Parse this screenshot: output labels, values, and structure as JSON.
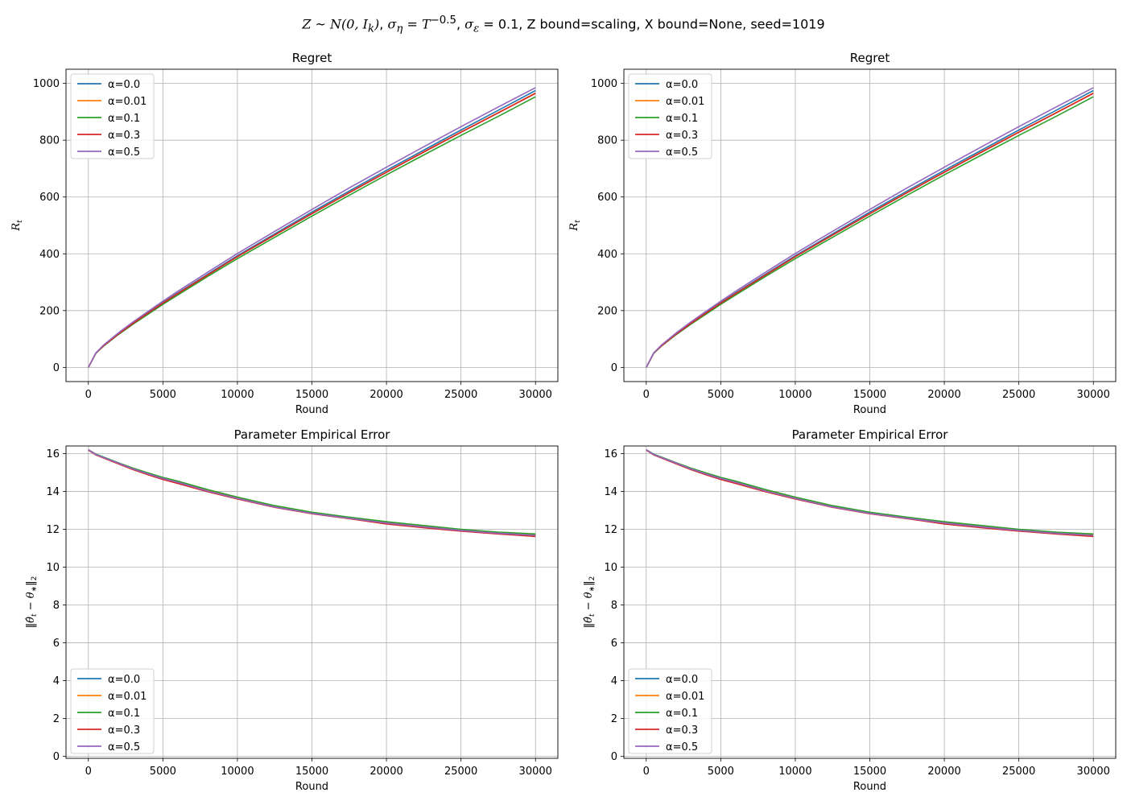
{
  "figure": {
    "title_parts": {
      "z_dist": "Z ~ N(0, I",
      "k_sub": "k",
      "close_paren": ")",
      "sigma_eta_sym": "σ",
      "eta_sub": "η",
      "eq_T": " = T",
      "T_exp": "−0.5",
      "sigma_eps_sym": "σ",
      "eps_sub": "ε",
      "eq_eps": " = 0.1",
      "z_bound": "Z bound=scaling",
      "x_bound": "X bound=None",
      "seed": "seed=1019"
    }
  },
  "colors": {
    "alpha_0.0": "#1f77b4",
    "alpha_0.01": "#ff7f0e",
    "alpha_0.1": "#2ca02c",
    "alpha_0.3": "#d62728",
    "alpha_0.5": "#9467bd",
    "grid": "#b0b0b0"
  },
  "chart_data": [
    {
      "type": "line",
      "title": "Regret",
      "xlabel": "Round",
      "ylabel": "R_t",
      "xlim": [
        -1500,
        31500
      ],
      "ylim": [
        -50,
        1050
      ],
      "xticks": [
        0,
        5000,
        10000,
        15000,
        20000,
        25000,
        30000
      ],
      "yticks": [
        0,
        200,
        400,
        600,
        800,
        1000
      ],
      "grid": true,
      "legend": "upper left",
      "x": [
        0,
        500,
        1000,
        2000,
        3000,
        4000,
        5000,
        6000,
        8000,
        10000,
        12500,
        15000,
        17500,
        20000,
        22500,
        25000,
        27500,
        30000
      ],
      "series": [
        {
          "name": "α=0.0",
          "values": [
            0,
            50,
            76,
            118,
            156,
            192,
            228,
            262,
            328,
            393,
            470,
            547,
            621,
            694,
            765,
            836,
            905,
            975
          ]
        },
        {
          "name": "α=0.01",
          "values": [
            0,
            50,
            75,
            117,
            155,
            190,
            226,
            260,
            325,
            390,
            466,
            542,
            616,
            688,
            759,
            829,
            897,
            966
          ]
        },
        {
          "name": "α=0.1",
          "values": [
            0,
            49,
            74,
            115,
            152,
            187,
            222,
            255,
            320,
            383,
            458,
            533,
            606,
            678,
            748,
            817,
            884,
            953
          ]
        },
        {
          "name": "α=0.3",
          "values": [
            0,
            50,
            75,
            117,
            155,
            191,
            226,
            260,
            325,
            390,
            466,
            541,
            615,
            687,
            758,
            828,
            896,
            965
          ]
        },
        {
          "name": "α=0.5",
          "values": [
            0,
            51,
            78,
            121,
            160,
            197,
            233,
            268,
            335,
            401,
            479,
            556,
            632,
            705,
            777,
            848,
            917,
            985
          ]
        }
      ]
    },
    {
      "type": "line",
      "title": "Regret",
      "xlabel": "Round",
      "ylabel": "R_t",
      "xlim": [
        -1500,
        31500
      ],
      "ylim": [
        -50,
        1050
      ],
      "xticks": [
        0,
        5000,
        10000,
        15000,
        20000,
        25000,
        30000
      ],
      "yticks": [
        0,
        200,
        400,
        600,
        800,
        1000
      ],
      "grid": true,
      "legend": "upper left",
      "x": [
        0,
        500,
        1000,
        2000,
        3000,
        4000,
        5000,
        6000,
        8000,
        10000,
        12500,
        15000,
        17500,
        20000,
        22500,
        25000,
        27500,
        30000
      ],
      "series": [
        {
          "name": "α=0.0",
          "values": [
            0,
            50,
            76,
            118,
            156,
            192,
            228,
            262,
            328,
            393,
            470,
            547,
            621,
            694,
            765,
            836,
            905,
            975
          ]
        },
        {
          "name": "α=0.01",
          "values": [
            0,
            50,
            75,
            117,
            155,
            190,
            226,
            260,
            325,
            390,
            466,
            542,
            616,
            688,
            759,
            829,
            897,
            966
          ]
        },
        {
          "name": "α=0.1",
          "values": [
            0,
            49,
            74,
            115,
            152,
            187,
            222,
            255,
            320,
            383,
            458,
            533,
            606,
            678,
            748,
            817,
            884,
            953
          ]
        },
        {
          "name": "α=0.3",
          "values": [
            0,
            50,
            75,
            117,
            155,
            191,
            226,
            260,
            325,
            390,
            466,
            541,
            615,
            687,
            758,
            828,
            896,
            965
          ]
        },
        {
          "name": "α=0.5",
          "values": [
            0,
            51,
            78,
            121,
            160,
            197,
            233,
            268,
            335,
            401,
            479,
            556,
            632,
            705,
            777,
            848,
            917,
            985
          ]
        }
      ]
    },
    {
      "type": "line",
      "title": "Parameter Empirical Error",
      "xlabel": "Round",
      "ylabel": "||θ̂_t − θ*||_2",
      "xlim": [
        -1500,
        31500
      ],
      "ylim": [
        -0.1,
        16.4
      ],
      "xticks": [
        0,
        5000,
        10000,
        15000,
        20000,
        25000,
        30000
      ],
      "yticks": [
        0,
        2,
        4,
        6,
        8,
        10,
        12,
        14,
        16
      ],
      "grid": true,
      "legend": "lower left",
      "x": [
        0,
        500,
        1000,
        2000,
        3000,
        4000,
        5000,
        6000,
        8000,
        10000,
        12500,
        15000,
        17500,
        20000,
        22500,
        25000,
        27500,
        30000
      ],
      "series": [
        {
          "name": "α=0.0",
          "values": [
            16.2,
            15.95,
            15.8,
            15.5,
            15.2,
            14.95,
            14.7,
            14.5,
            14.05,
            13.65,
            13.2,
            12.85,
            12.6,
            12.35,
            12.15,
            11.95,
            11.8,
            11.7
          ]
        },
        {
          "name": "α=0.01",
          "values": [
            16.2,
            15.95,
            15.8,
            15.5,
            15.2,
            14.95,
            14.7,
            14.5,
            14.05,
            13.65,
            13.2,
            12.85,
            12.6,
            12.35,
            12.15,
            11.95,
            11.8,
            11.7
          ]
        },
        {
          "name": "α=0.1",
          "values": [
            16.2,
            15.97,
            15.82,
            15.52,
            15.23,
            14.98,
            14.74,
            14.54,
            14.1,
            13.7,
            13.25,
            12.9,
            12.64,
            12.4,
            12.2,
            12.0,
            11.85,
            11.75
          ]
        },
        {
          "name": "α=0.3",
          "values": [
            16.18,
            15.93,
            15.77,
            15.46,
            15.15,
            14.88,
            14.63,
            14.42,
            13.98,
            13.6,
            13.16,
            12.82,
            12.56,
            12.28,
            12.08,
            11.9,
            11.75,
            11.62
          ]
        },
        {
          "name": "α=0.5",
          "values": [
            16.2,
            15.95,
            15.8,
            15.5,
            15.19,
            14.93,
            14.68,
            14.48,
            14.02,
            13.63,
            13.18,
            12.84,
            12.58,
            12.33,
            12.13,
            11.94,
            11.79,
            11.68
          ]
        }
      ]
    },
    {
      "type": "line",
      "title": "Parameter Empirical Error",
      "xlabel": "Round",
      "ylabel": "||θ̂_t − θ*||_2",
      "xlim": [
        -1500,
        31500
      ],
      "ylim": [
        -0.1,
        16.4
      ],
      "xticks": [
        0,
        5000,
        10000,
        15000,
        20000,
        25000,
        30000
      ],
      "yticks": [
        0,
        2,
        4,
        6,
        8,
        10,
        12,
        14,
        16
      ],
      "grid": true,
      "legend": "lower left",
      "x": [
        0,
        500,
        1000,
        2000,
        3000,
        4000,
        5000,
        6000,
        8000,
        10000,
        12500,
        15000,
        17500,
        20000,
        22500,
        25000,
        27500,
        30000
      ],
      "series": [
        {
          "name": "α=0.0",
          "values": [
            16.2,
            15.95,
            15.8,
            15.5,
            15.2,
            14.95,
            14.7,
            14.5,
            14.05,
            13.65,
            13.2,
            12.85,
            12.6,
            12.35,
            12.15,
            11.95,
            11.8,
            11.7
          ]
        },
        {
          "name": "α=0.01",
          "values": [
            16.2,
            15.95,
            15.8,
            15.5,
            15.2,
            14.95,
            14.7,
            14.5,
            14.05,
            13.65,
            13.2,
            12.85,
            12.6,
            12.35,
            12.15,
            11.95,
            11.8,
            11.7
          ]
        },
        {
          "name": "α=0.1",
          "values": [
            16.2,
            15.97,
            15.82,
            15.52,
            15.23,
            14.98,
            14.74,
            14.54,
            14.1,
            13.7,
            13.25,
            12.9,
            12.64,
            12.4,
            12.2,
            12.0,
            11.85,
            11.75
          ]
        },
        {
          "name": "α=0.3",
          "values": [
            16.18,
            15.93,
            15.77,
            15.46,
            15.15,
            14.88,
            14.63,
            14.42,
            13.98,
            13.6,
            13.16,
            12.82,
            12.56,
            12.28,
            12.08,
            11.9,
            11.75,
            11.62
          ]
        },
        {
          "name": "α=0.5",
          "values": [
            16.2,
            15.95,
            15.8,
            15.5,
            15.19,
            14.93,
            14.68,
            14.48,
            14.02,
            13.63,
            13.18,
            12.84,
            12.58,
            12.33,
            12.13,
            11.94,
            11.79,
            11.68
          ]
        }
      ]
    }
  ]
}
